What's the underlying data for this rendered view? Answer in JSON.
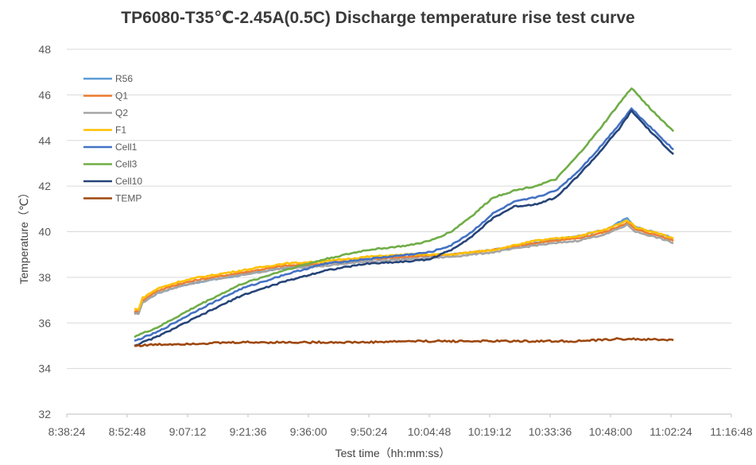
{
  "chart_data": {
    "type": "line",
    "title": "TP6080-T35℃-2.45A(0.5C) Discharge temperature rise test curve",
    "xlabel": "Test time（hh:mm:ss）",
    "ylabel": "Temperature（℃）",
    "ylim": [
      32,
      48
    ],
    "y_ticks": [
      "32",
      "34",
      "36",
      "38",
      "40",
      "42",
      "44",
      "46",
      "48"
    ],
    "x_ticks": [
      "8:38:24",
      "8:52:48",
      "9:07:12",
      "9:21:36",
      "9:36:00",
      "9:50:24",
      "10:04:48",
      "10:19:12",
      "10:33:36",
      "10:48:00",
      "11:02:24",
      "11:16:48"
    ],
    "xlim": [
      "8:38:24",
      "11:16:48"
    ],
    "grid": "horizontal",
    "legend_position": "top-left inside",
    "series": [
      {
        "name": "R56",
        "color": "#5B9BD5",
        "x": [
          "8:54:30",
          "8:55:30",
          "8:56:30",
          "9:00:00",
          "9:05:00",
          "9:10:00",
          "9:20:00",
          "9:30:00",
          "9:40:00",
          "9:50:00",
          "10:00:00",
          "10:10:00",
          "10:20:00",
          "10:30:00",
          "10:40:00",
          "10:47:00",
          "10:52:00",
          "10:54:00",
          "11:00:00",
          "11:03:00"
        ],
        "values": [
          36.4,
          36.5,
          36.9,
          37.3,
          37.6,
          37.8,
          38.1,
          38.4,
          38.6,
          38.8,
          38.9,
          39.0,
          39.2,
          39.5,
          39.8,
          40.1,
          40.6,
          40.2,
          39.9,
          39.7
        ]
      },
      {
        "name": "Q1",
        "color": "#ED7D31",
        "x": [
          "8:54:30",
          "8:55:30",
          "8:56:30",
          "9:00:00",
          "9:05:00",
          "9:10:00",
          "9:20:00",
          "9:30:00",
          "9:40:00",
          "9:50:00",
          "10:00:00",
          "10:10:00",
          "10:20:00",
          "10:30:00",
          "10:40:00",
          "10:47:00",
          "10:52:00",
          "10:54:00",
          "11:00:00",
          "11:03:00"
        ],
        "values": [
          36.5,
          36.5,
          37.0,
          37.4,
          37.7,
          37.9,
          38.2,
          38.5,
          38.6,
          38.8,
          38.9,
          39.0,
          39.2,
          39.5,
          39.7,
          40.0,
          40.4,
          40.1,
          39.8,
          39.6
        ]
      },
      {
        "name": "Q2",
        "color": "#A5A5A5",
        "x": [
          "8:54:30",
          "8:55:30",
          "8:56:30",
          "9:00:00",
          "9:05:00",
          "9:10:00",
          "9:20:00",
          "9:30:00",
          "9:40:00",
          "9:50:00",
          "10:00:00",
          "10:10:00",
          "10:20:00",
          "10:30:00",
          "10:40:00",
          "10:47:00",
          "10:52:00",
          "10:54:00",
          "11:00:00",
          "11:03:00"
        ],
        "values": [
          36.4,
          36.4,
          36.9,
          37.3,
          37.6,
          37.8,
          38.1,
          38.4,
          38.5,
          38.7,
          38.8,
          38.9,
          39.1,
          39.4,
          39.6,
          39.9,
          40.3,
          40.0,
          39.7,
          39.5
        ]
      },
      {
        "name": "F1",
        "color": "#FFC000",
        "x": [
          "8:54:30",
          "8:55:30",
          "8:56:30",
          "9:00:00",
          "9:05:00",
          "9:10:00",
          "9:20:00",
          "9:30:00",
          "9:40:00",
          "9:50:00",
          "10:00:00",
          "10:10:00",
          "10:20:00",
          "10:30:00",
          "10:40:00",
          "10:47:00",
          "10:52:00",
          "10:54:00",
          "11:00:00",
          "11:03:00"
        ],
        "values": [
          36.6,
          36.6,
          37.1,
          37.5,
          37.8,
          38.0,
          38.3,
          38.6,
          38.7,
          38.9,
          39.0,
          39.0,
          39.2,
          39.6,
          39.8,
          40.1,
          40.5,
          40.2,
          39.9,
          39.7
        ]
      },
      {
        "name": "Cell1",
        "color": "#4472C4",
        "x": [
          "8:54:30",
          "9:00:00",
          "9:10:00",
          "9:20:00",
          "9:30:00",
          "9:40:00",
          "9:50:00",
          "10:00:00",
          "10:05:00",
          "10:10:00",
          "10:15:00",
          "10:20:00",
          "10:25:00",
          "10:30:00",
          "10:35:00",
          "10:40:00",
          "10:45:00",
          "10:50:00",
          "10:53:00",
          "10:58:00",
          "11:03:00"
        ],
        "values": [
          35.2,
          35.6,
          36.6,
          37.5,
          38.1,
          38.6,
          38.8,
          39.0,
          39.1,
          39.4,
          40.0,
          40.8,
          41.3,
          41.5,
          41.8,
          42.6,
          43.6,
          44.7,
          45.4,
          44.5,
          43.6
        ]
      },
      {
        "name": "Cell3",
        "color": "#70AD47",
        "x": [
          "8:54:30",
          "9:00:00",
          "9:10:00",
          "9:20:00",
          "9:30:00",
          "9:40:00",
          "9:50:00",
          "10:00:00",
          "10:05:00",
          "10:10:00",
          "10:15:00",
          "10:20:00",
          "10:25:00",
          "10:30:00",
          "10:35:00",
          "10:40:00",
          "10:45:00",
          "10:50:00",
          "10:53:00",
          "10:58:00",
          "11:03:00"
        ],
        "values": [
          35.4,
          35.8,
          36.8,
          37.7,
          38.3,
          38.8,
          39.2,
          39.4,
          39.6,
          40.0,
          40.7,
          41.5,
          41.8,
          42.0,
          42.3,
          43.3,
          44.4,
          45.6,
          46.3,
          45.3,
          44.4
        ]
      },
      {
        "name": "Cell10",
        "color": "#264478",
        "x": [
          "8:54:30",
          "9:00:00",
          "9:10:00",
          "9:20:00",
          "9:30:00",
          "9:40:00",
          "9:50:00",
          "10:00:00",
          "10:05:00",
          "10:10:00",
          "10:15:00",
          "10:20:00",
          "10:25:00",
          "10:30:00",
          "10:35:00",
          "10:40:00",
          "10:45:00",
          "10:50:00",
          "10:53:00",
          "10:58:00",
          "11:03:00"
        ],
        "values": [
          35.0,
          35.4,
          36.3,
          37.2,
          37.8,
          38.3,
          38.6,
          38.7,
          38.8,
          39.2,
          39.8,
          40.6,
          41.1,
          41.2,
          41.5,
          42.4,
          43.4,
          44.5,
          45.3,
          44.3,
          43.4
        ]
      },
      {
        "name": "TEMP",
        "color": "#9E480E",
        "x": [
          "8:54:30",
          "9:00:00",
          "9:10:00",
          "9:20:00",
          "9:30:00",
          "9:40:00",
          "9:50:00",
          "10:00:00",
          "10:10:00",
          "10:20:00",
          "10:30:00",
          "10:40:00",
          "10:46:00",
          "10:50:00",
          "11:03:00"
        ],
        "values": [
          35.0,
          35.05,
          35.1,
          35.15,
          35.15,
          35.15,
          35.15,
          35.2,
          35.2,
          35.2,
          35.2,
          35.2,
          35.25,
          35.3,
          35.25
        ]
      }
    ]
  }
}
